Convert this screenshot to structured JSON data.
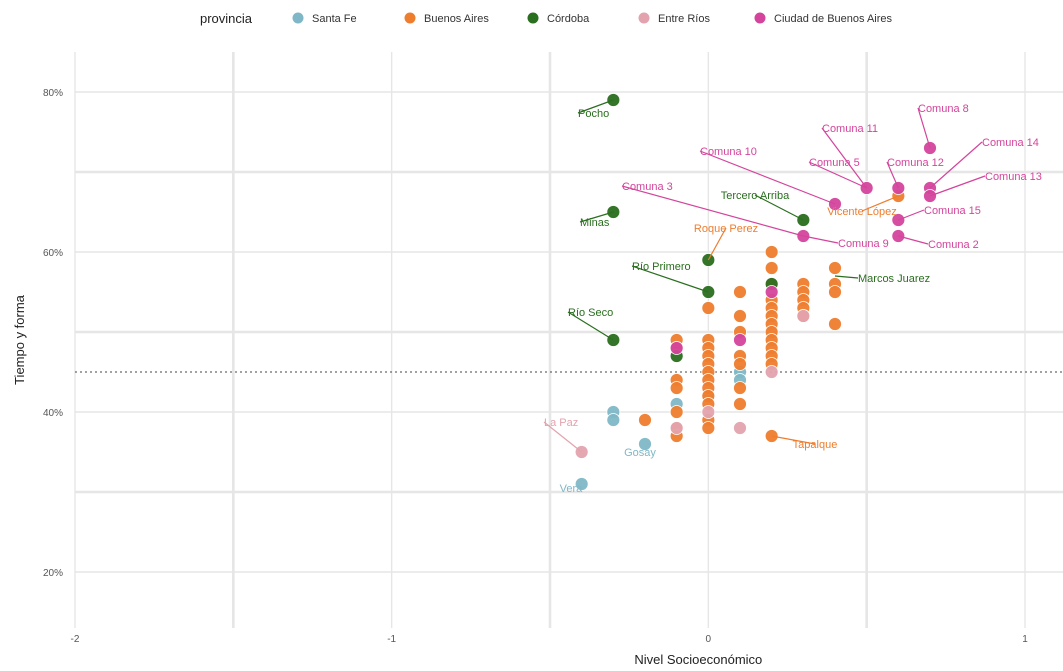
{
  "chart_data": {
    "type": "scatter",
    "xlabel": "Nivel Socioeconómico",
    "ylabel": "Tiempo y forma",
    "xlim": [
      -2.0,
      1.12
    ],
    "ylim": [
      0.13,
      0.85
    ],
    "x_ticks": [
      -2,
      -1,
      0,
      1
    ],
    "x_tick_labels": [
      "-2",
      "-1",
      "0",
      "1"
    ],
    "y_ticks": [
      0.2,
      0.4,
      0.6,
      0.8
    ],
    "y_tick_labels": [
      "20%",
      "40%",
      "60%",
      "80%"
    ],
    "reference_line_y": 0.45,
    "legend": {
      "title": "provincia",
      "position": "top",
      "entries": [
        "Santa Fe",
        "Buenos Aires",
        "Córdoba",
        "Entre Ríos",
        "Ciudad de Buenos Aires"
      ]
    },
    "series": [
      {
        "name": "Santa Fe",
        "color": "#7fb7c6",
        "points": [
          {
            "x": -0.3,
            "y": 0.4
          },
          {
            "x": -0.3,
            "y": 0.39
          },
          {
            "x": -0.2,
            "y": 0.36
          },
          {
            "x": -0.4,
            "y": 0.31
          },
          {
            "x": -0.1,
            "y": 0.41
          },
          {
            "x": 0.1,
            "y": 0.45
          },
          {
            "x": 0.1,
            "y": 0.44
          },
          {
            "x": 0.0,
            "y": 0.42
          }
        ],
        "labels": [
          {
            "text": "Gosay",
            "x": -0.2,
            "y": 0.36
          },
          {
            "text": "Vera",
            "x": -0.4,
            "y": 0.31
          }
        ]
      },
      {
        "name": "Buenos Aires",
        "color": "#ee7d2e",
        "points": [
          {
            "x": -0.2,
            "y": 0.39
          },
          {
            "x": -0.1,
            "y": 0.49
          },
          {
            "x": -0.1,
            "y": 0.48
          },
          {
            "x": -0.1,
            "y": 0.44
          },
          {
            "x": -0.1,
            "y": 0.43
          },
          {
            "x": -0.1,
            "y": 0.4
          },
          {
            "x": -0.1,
            "y": 0.38
          },
          {
            "x": -0.1,
            "y": 0.37
          },
          {
            "x": 0.0,
            "y": 0.53
          },
          {
            "x": 0.0,
            "y": 0.49
          },
          {
            "x": 0.0,
            "y": 0.48
          },
          {
            "x": 0.0,
            "y": 0.47
          },
          {
            "x": 0.0,
            "y": 0.46
          },
          {
            "x": 0.0,
            "y": 0.45
          },
          {
            "x": 0.0,
            "y": 0.44
          },
          {
            "x": 0.0,
            "y": 0.43
          },
          {
            "x": 0.0,
            "y": 0.42
          },
          {
            "x": 0.0,
            "y": 0.41
          },
          {
            "x": 0.0,
            "y": 0.39
          },
          {
            "x": 0.0,
            "y": 0.38
          },
          {
            "x": 0.1,
            "y": 0.55
          },
          {
            "x": 0.1,
            "y": 0.52
          },
          {
            "x": 0.1,
            "y": 0.5
          },
          {
            "x": 0.1,
            "y": 0.47
          },
          {
            "x": 0.1,
            "y": 0.46
          },
          {
            "x": 0.1,
            "y": 0.43
          },
          {
            "x": 0.1,
            "y": 0.41
          },
          {
            "x": 0.2,
            "y": 0.6
          },
          {
            "x": 0.2,
            "y": 0.58
          },
          {
            "x": 0.2,
            "y": 0.56
          },
          {
            "x": 0.2,
            "y": 0.54
          },
          {
            "x": 0.2,
            "y": 0.53
          },
          {
            "x": 0.2,
            "y": 0.52
          },
          {
            "x": 0.2,
            "y": 0.51
          },
          {
            "x": 0.2,
            "y": 0.5
          },
          {
            "x": 0.2,
            "y": 0.49
          },
          {
            "x": 0.2,
            "y": 0.48
          },
          {
            "x": 0.2,
            "y": 0.47
          },
          {
            "x": 0.2,
            "y": 0.46
          },
          {
            "x": 0.2,
            "y": 0.37
          },
          {
            "x": 0.3,
            "y": 0.56
          },
          {
            "x": 0.3,
            "y": 0.55
          },
          {
            "x": 0.3,
            "y": 0.54
          },
          {
            "x": 0.3,
            "y": 0.53
          },
          {
            "x": 0.3,
            "y": 0.52
          },
          {
            "x": 0.4,
            "y": 0.58
          },
          {
            "x": 0.4,
            "y": 0.56
          },
          {
            "x": 0.4,
            "y": 0.55
          },
          {
            "x": 0.4,
            "y": 0.51
          },
          {
            "x": 0.6,
            "y": 0.67
          }
        ],
        "labels": [
          {
            "text": "Roque Perez",
            "x": 0.0,
            "y": 0.59
          },
          {
            "text": "Tapalque",
            "x": 0.2,
            "y": 0.37
          },
          {
            "text": "Vicente López",
            "x": 0.6,
            "y": 0.67
          }
        ]
      },
      {
        "name": "Córdoba",
        "color": "#2a6e1f",
        "points": [
          {
            "x": -0.3,
            "y": 0.79
          },
          {
            "x": -0.3,
            "y": 0.65
          },
          {
            "x": -0.3,
            "y": 0.49
          },
          {
            "x": 0.0,
            "y": 0.59
          },
          {
            "x": 0.0,
            "y": 0.55
          },
          {
            "x": -0.1,
            "y": 0.47
          },
          {
            "x": 0.3,
            "y": 0.64
          },
          {
            "x": 0.2,
            "y": 0.56
          }
        ],
        "labels": [
          {
            "text": "Pocho",
            "x": -0.3,
            "y": 0.79
          },
          {
            "text": "Minas",
            "x": -0.3,
            "y": 0.65
          },
          {
            "text": "Río Seco",
            "x": -0.3,
            "y": 0.49
          },
          {
            "text": "Río Primero",
            "x": 0.0,
            "y": 0.55
          },
          {
            "text": "Tercero Arriba",
            "x": 0.3,
            "y": 0.64
          },
          {
            "text": "Marcos Juarez",
            "x": 0.4,
            "y": 0.57
          }
        ]
      },
      {
        "name": "Entre Ríos",
        "color": "#e3a3ae",
        "points": [
          {
            "x": -0.4,
            "y": 0.35
          },
          {
            "x": 0.1,
            "y": 0.38
          },
          {
            "x": -0.1,
            "y": 0.38
          },
          {
            "x": 0.0,
            "y": 0.4
          },
          {
            "x": 0.2,
            "y": 0.45
          },
          {
            "x": 0.3,
            "y": 0.52
          }
        ],
        "labels": [
          {
            "text": "La Paz",
            "x": -0.4,
            "y": 0.35
          }
        ]
      },
      {
        "name": "Ciudad de Buenos Aires",
        "color": "#d4449c",
        "points": [
          {
            "x": 0.7,
            "y": 0.73
          },
          {
            "x": 0.5,
            "y": 0.68
          },
          {
            "x": 0.6,
            "y": 0.68
          },
          {
            "x": 0.7,
            "y": 0.68
          },
          {
            "x": 0.7,
            "y": 0.67
          },
          {
            "x": 0.4,
            "y": 0.66
          },
          {
            "x": 0.6,
            "y": 0.64
          },
          {
            "x": 0.6,
            "y": 0.62
          },
          {
            "x": 0.3,
            "y": 0.62
          },
          {
            "x": 0.1,
            "y": 0.49
          },
          {
            "x": -0.1,
            "y": 0.48
          },
          {
            "x": 0.2,
            "y": 0.55
          }
        ],
        "labels": [
          {
            "text": "Comuna 8",
            "x": 0.7,
            "y": 0.73
          },
          {
            "text": "Comuna 11",
            "x": 0.5,
            "y": 0.68
          },
          {
            "text": "Comuna 14",
            "x": 0.7,
            "y": 0.68
          },
          {
            "text": "Comuna 10",
            "x": 0.4,
            "y": 0.66
          },
          {
            "text": "Comuna 5",
            "x": 0.5,
            "y": 0.68
          },
          {
            "text": "Comuna 12",
            "x": 0.6,
            "y": 0.68
          },
          {
            "text": "Comuna 13",
            "x": 0.7,
            "y": 0.67
          },
          {
            "text": "Comuna 3",
            "x": 0.3,
            "y": 0.62
          },
          {
            "text": "Comuna 15",
            "x": 0.6,
            "y": 0.64
          },
          {
            "text": "Comuna 9",
            "x": 0.3,
            "y": 0.62
          },
          {
            "text": "Comuna 2",
            "x": 0.6,
            "y": 0.62
          }
        ]
      }
    ]
  }
}
